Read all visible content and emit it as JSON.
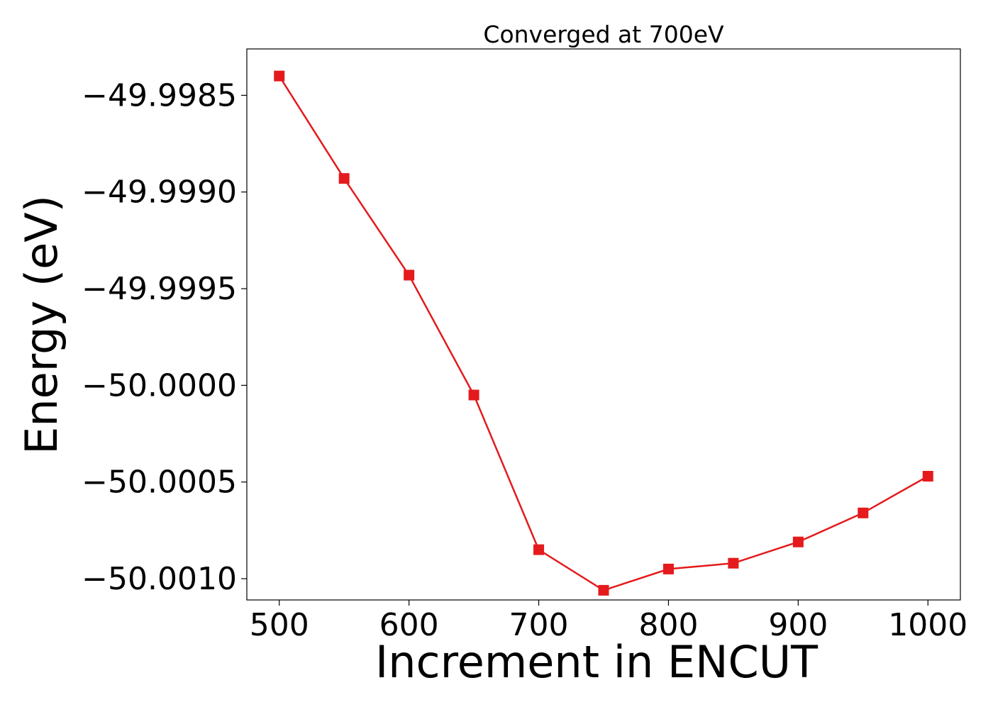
{
  "chart_data": {
    "type": "line",
    "title": "Converged at 700eV",
    "xlabel": "Increment in ENCUT",
    "ylabel": "Energy (eV)",
    "x": [
      500,
      550,
      600,
      650,
      700,
      750,
      800,
      850,
      900,
      950,
      1000
    ],
    "series": [
      {
        "values": [
          -49.9984,
          -49.99893,
          -49.99943,
          -50.00005,
          -50.00085,
          -50.00106,
          -50.00095,
          -50.00092,
          -50.00081,
          -50.00066,
          -50.00047
        ],
        "color": "#e41a1c",
        "marker": "square"
      }
    ],
    "xlim": [
      475,
      1025
    ],
    "ylim": [
      -50.00111,
      -49.99826
    ],
    "xticks": [
      500,
      600,
      700,
      800,
      900,
      1000
    ],
    "xtick_labels": [
      "500",
      "600",
      "700",
      "800",
      "900",
      "1000"
    ],
    "yticks": [
      -49.9985,
      -49.999,
      -49.9995,
      -50.0,
      -50.0005,
      -50.001
    ],
    "ytick_labels": [
      "−49.9985",
      "−49.9990",
      "−49.9995",
      "−50.0000",
      "−50.0005",
      "−50.0010"
    ],
    "grid": false,
    "legend": "none"
  }
}
